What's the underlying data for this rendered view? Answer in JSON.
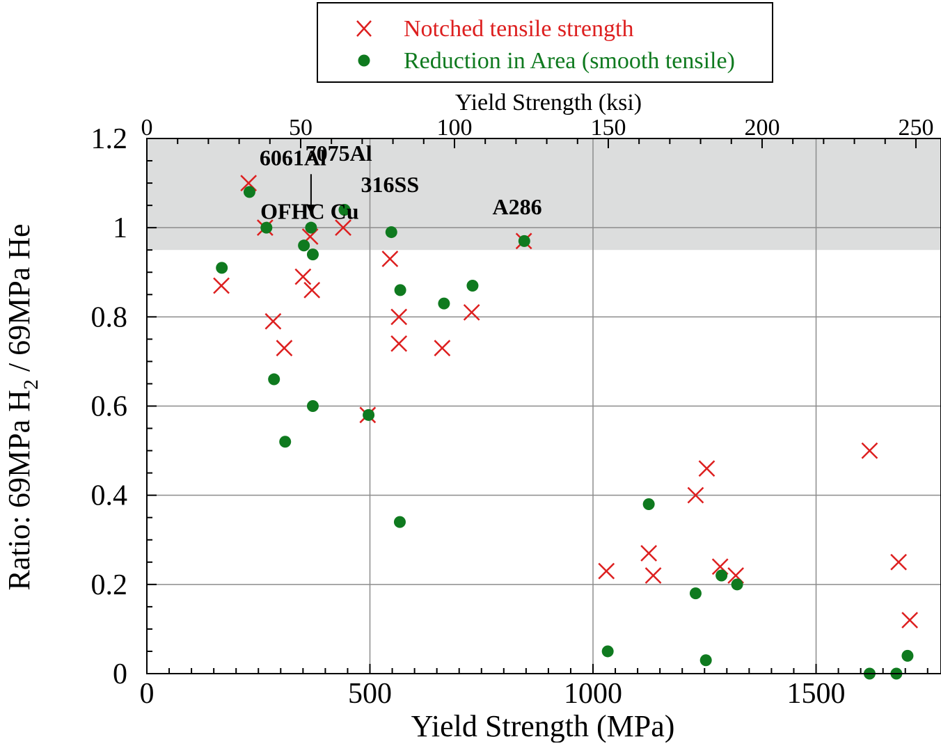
{
  "chart_data": {
    "type": "scatter",
    "xlabel": "Yield Strength (MPa)",
    "ylabel_main": "Ratio: 69MPa H",
    "ylabel_sub": "2",
    "ylabel_rest": " / 69MPa He",
    "x2label": "Yield Strength (ksi)",
    "xlim": [
      0,
      1780
    ],
    "ylim": [
      0,
      1.2
    ],
    "x_ticks": [
      0,
      500,
      1000,
      1500
    ],
    "y_ticks": [
      0,
      0.2,
      0.4,
      0.6,
      0.8,
      1,
      1.2
    ],
    "y_tick_labels": [
      "0",
      "0.2",
      "0.4",
      "0.6",
      "0.8",
      "1",
      "1.2"
    ],
    "x2_ticks": [
      0,
      50,
      100,
      150,
      200,
      250
    ],
    "ksi_to_mpa": 6.895,
    "grid": true,
    "shaded_band": [
      0.95,
      1.2
    ],
    "colors": {
      "notched": "#dd1f1f",
      "reduction": "#0f7a1f",
      "band": "#dcdddd",
      "grid": "#8c8c8c"
    },
    "legend": {
      "position": "top-center",
      "entries": [
        {
          "label": "Notched tensile strength",
          "marker": "x",
          "color": "#dd1f1f"
        },
        {
          "label": "Reduction in Area (smooth tensile)",
          "marker": "circle",
          "color": "#0f7a1f"
        }
      ]
    },
    "annotations": [
      {
        "text": "6061Al",
        "x": 240,
        "y": 1.14
      },
      {
        "text": "OFHC Cu",
        "x": 240,
        "y": 1.02
      },
      {
        "text": "7075Al",
        "x": 430,
        "y": 1.15
      },
      {
        "text": "316SS",
        "x": 545,
        "y": 1.08
      },
      {
        "text": "A286",
        "x": 830,
        "y": 1.03
      }
    ],
    "series": [
      {
        "name": "Notched tensile strength",
        "marker": "x",
        "points": [
          [
            167,
            0.87
          ],
          [
            228,
            1.1
          ],
          [
            265,
            1.0
          ],
          [
            283,
            0.79
          ],
          [
            308,
            0.73
          ],
          [
            350,
            0.89
          ],
          [
            366,
            0.98
          ],
          [
            370,
            0.86
          ],
          [
            440,
            1.0
          ],
          [
            495,
            0.58
          ],
          [
            545,
            0.93
          ],
          [
            565,
            0.8
          ],
          [
            565,
            0.74
          ],
          [
            662,
            0.73
          ],
          [
            728,
            0.81
          ],
          [
            845,
            0.97
          ],
          [
            1030,
            0.23
          ],
          [
            1125,
            0.27
          ],
          [
            1135,
            0.22
          ],
          [
            1230,
            0.4
          ],
          [
            1255,
            0.46
          ],
          [
            1285,
            0.24
          ],
          [
            1320,
            0.22
          ],
          [
            1620,
            0.5
          ],
          [
            1685,
            0.25
          ],
          [
            1710,
            0.12
          ]
        ]
      },
      {
        "name": "Reduction in Area (smooth tensile)",
        "marker": "circle",
        "points": [
          [
            168,
            0.91
          ],
          [
            230,
            1.08
          ],
          [
            268,
            1.0
          ],
          [
            285,
            0.66
          ],
          [
            310,
            0.52
          ],
          [
            352,
            0.96
          ],
          [
            368,
            1.0
          ],
          [
            372,
            0.94
          ],
          [
            372,
            0.6
          ],
          [
            443,
            1.04
          ],
          [
            497,
            0.58
          ],
          [
            548,
            0.99
          ],
          [
            568,
            0.86
          ],
          [
            567,
            0.34
          ],
          [
            666,
            0.83
          ],
          [
            730,
            0.87
          ],
          [
            846,
            0.97
          ],
          [
            1033,
            0.05
          ],
          [
            1125,
            0.38
          ],
          [
            1230,
            0.18
          ],
          [
            1253,
            0.03
          ],
          [
            1288,
            0.22
          ],
          [
            1323,
            0.2
          ],
          [
            1620,
            0.0
          ],
          [
            1680,
            0.0
          ],
          [
            1705,
            0.04
          ]
        ]
      }
    ]
  }
}
